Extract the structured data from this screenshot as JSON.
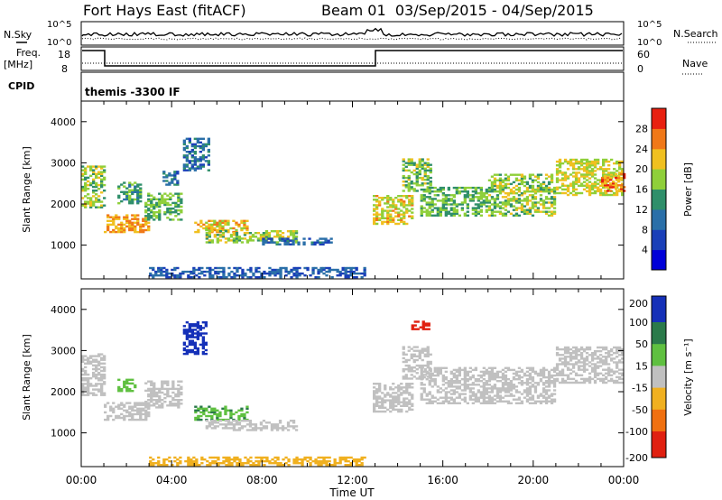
{
  "header": {
    "station": "Fort Hays East (fitACF)",
    "beam_info": "Beam 01  03/Sep/2015 - 04/Sep/2015"
  },
  "left_labels": {
    "nsky": "N.Sky",
    "freq": "Freq.",
    "mhz": "[MHz]",
    "cpid": "CPID"
  },
  "right_labels": {
    "nsearch": "N.Search",
    "nave": "Nave"
  },
  "strips": {
    "noise_ticks_left": [
      "10^5",
      "10^0"
    ],
    "noise_ticks_right": [
      "10^5",
      "10^0"
    ],
    "freq_ticks": [
      "18",
      "8"
    ],
    "nave_ticks": [
      "60",
      "0"
    ],
    "cpid_text": "themis -3300 IF"
  },
  "chart_data": [
    {
      "type": "heatmap",
      "name": "power",
      "ylabel": "Slant Range [km]",
      "xlabel": "",
      "x_ticks": [
        "00:00",
        "04:00",
        "08:00",
        "12:00",
        "16:00",
        "20:00",
        "00:00"
      ],
      "xlim_hours": [
        0,
        24
      ],
      "y_ticks": [
        1000,
        2000,
        3000,
        4000
      ],
      "ylim": [
        180,
        4500
      ],
      "colorbar": {
        "label": "Power [dB]",
        "ticks": [
          4,
          8,
          12,
          16,
          20,
          24,
          28
        ],
        "range": [
          0,
          32
        ]
      },
      "regions": [
        {
          "x0": 0.0,
          "x1": 1.0,
          "y0": 1900,
          "y1": 2900,
          "v": 18
        },
        {
          "x0": 1.0,
          "x1": 3.0,
          "y0": 1300,
          "y1": 1750,
          "v": 24
        },
        {
          "x0": 1.6,
          "x1": 2.6,
          "y0": 2000,
          "y1": 2500,
          "v": 14
        },
        {
          "x0": 2.8,
          "x1": 4.4,
          "y0": 1600,
          "y1": 2250,
          "v": 16
        },
        {
          "x0": 3.6,
          "x1": 4.3,
          "y0": 2450,
          "y1": 2800,
          "v": 11
        },
        {
          "x0": 4.5,
          "x1": 5.6,
          "y0": 2800,
          "y1": 3600,
          "v": 10
        },
        {
          "x0": 5.0,
          "x1": 7.4,
          "y0": 1300,
          "y1": 1600,
          "v": 22
        },
        {
          "x0": 5.5,
          "x1": 9.5,
          "y0": 1050,
          "y1": 1350,
          "v": 19
        },
        {
          "x0": 8.0,
          "x1": 11.0,
          "y0": 1000,
          "y1": 1150,
          "v": 9
        },
        {
          "x0": 3.0,
          "x1": 12.5,
          "y0": 200,
          "y1": 450,
          "v": 8
        },
        {
          "x0": 12.9,
          "x1": 14.6,
          "y0": 1500,
          "y1": 2200,
          "v": 21
        },
        {
          "x0": 14.2,
          "x1": 15.5,
          "y0": 2300,
          "y1": 3100,
          "v": 17
        },
        {
          "x0": 15.0,
          "x1": 18.0,
          "y0": 1700,
          "y1": 2400,
          "v": 16
        },
        {
          "x0": 18.0,
          "x1": 21.0,
          "y0": 1700,
          "y1": 2700,
          "v": 18
        },
        {
          "x0": 21.0,
          "x1": 24.0,
          "y0": 2200,
          "y1": 3100,
          "v": 20
        },
        {
          "x0": 23.0,
          "x1": 24.0,
          "y0": 2300,
          "y1": 2750,
          "v": 26
        }
      ]
    },
    {
      "type": "heatmap",
      "name": "velocity",
      "ylabel": "Slant Range [km]",
      "xlabel": "Time UT",
      "x_ticks": [
        "00:00",
        "04:00",
        "08:00",
        "12:00",
        "16:00",
        "20:00",
        "00:00"
      ],
      "xlim_hours": [
        0,
        24
      ],
      "y_ticks": [
        1000,
        2000,
        3000,
        4000
      ],
      "ylim": [
        180,
        4500
      ],
      "colorbar": {
        "label": "Velocity [m s⁻¹]",
        "ticks": [
          200,
          100,
          50,
          15,
          -15,
          -50,
          -100,
          -200
        ]
      },
      "regions": [
        {
          "x0": 0.0,
          "x1": 1.0,
          "y0": 1900,
          "y1": 2900,
          "v": 0
        },
        {
          "x0": 1.0,
          "x1": 3.0,
          "y0": 1300,
          "y1": 1750,
          "v": 0
        },
        {
          "x0": 1.6,
          "x1": 2.4,
          "y0": 2000,
          "y1": 2300,
          "v": 60
        },
        {
          "x0": 2.8,
          "x1": 4.4,
          "y0": 1600,
          "y1": 2250,
          "v": 0
        },
        {
          "x0": 4.5,
          "x1": 5.5,
          "y0": 2900,
          "y1": 3700,
          "v": 180
        },
        {
          "x0": 5.0,
          "x1": 7.4,
          "y0": 1300,
          "y1": 1650,
          "v": 70
        },
        {
          "x0": 5.5,
          "x1": 9.5,
          "y0": 1050,
          "y1": 1300,
          "v": 0
        },
        {
          "x0": 3.0,
          "x1": 12.5,
          "y0": 200,
          "y1": 400,
          "v": -40
        },
        {
          "x0": 12.9,
          "x1": 14.6,
          "y0": 1500,
          "y1": 2200,
          "v": 0
        },
        {
          "x0": 14.2,
          "x1": 15.5,
          "y0": 2300,
          "y1": 3100,
          "v": 0
        },
        {
          "x0": 14.6,
          "x1": 15.4,
          "y0": 3500,
          "y1": 3700,
          "v": -180
        },
        {
          "x0": 15.0,
          "x1": 21.0,
          "y0": 1700,
          "y1": 2600,
          "v": 0
        },
        {
          "x0": 21.0,
          "x1": 24.0,
          "y0": 2200,
          "y1": 3100,
          "v": 0
        }
      ]
    }
  ]
}
